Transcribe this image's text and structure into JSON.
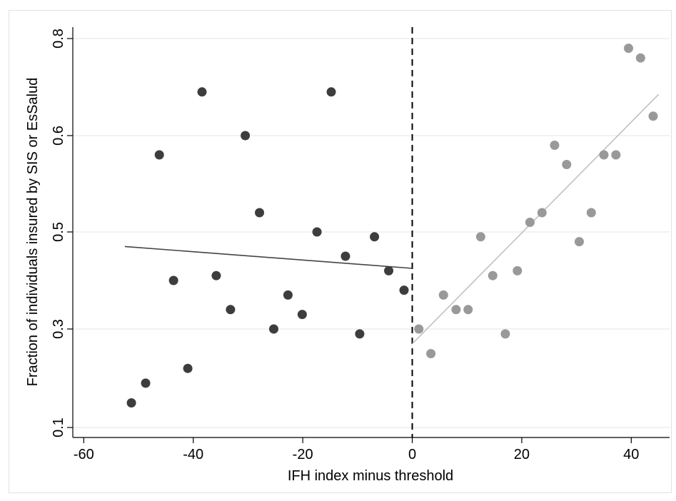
{
  "chart_data": {
    "type": "scatter",
    "xlabel": "IFH index minus threshold",
    "ylabel": "Fraction of individuals insured by SIS or EsSalud",
    "xlim": [
      -62,
      47
    ],
    "ylim": [
      0.1,
      0.8
    ],
    "x_ticks": [
      -60,
      -40,
      -20,
      0,
      20,
      40
    ],
    "x_tick_labels": [
      "-60",
      "-40",
      "-20",
      "0",
      "20",
      "40"
    ],
    "y_ticks": [
      0.1,
      0.3,
      0.5,
      0.6,
      0.8
    ],
    "y_tick_labels": [
      "0.1",
      "0.3",
      "0.5",
      "0.6",
      "0.8"
    ],
    "grid": "horizontal",
    "threshold_x": 0,
    "series": [
      {
        "color": "#3d3d3d",
        "x": [
          -51.3,
          -48.7,
          -46.2,
          -43.6,
          -41.0,
          -38.4,
          -35.8,
          -33.2,
          -30.5,
          -27.9,
          -25.3,
          -22.7,
          -20.1,
          -17.4,
          -14.8,
          -12.2,
          -9.6,
          -6.9,
          -4.3,
          -1.5
        ],
        "y": [
          0.15,
          0.19,
          0.58,
          0.4,
          0.22,
          0.69,
          0.41,
          0.34,
          0.6,
          0.52,
          0.3,
          0.37,
          0.33,
          0.5,
          0.69,
          0.45,
          0.29,
          0.49,
          0.42,
          0.38
        ],
        "fit": {
          "x": [
            -52.5,
            0
          ],
          "y": [
            0.47,
            0.425
          ]
        }
      },
      {
        "color": "#999999",
        "x": [
          1.2,
          3.4,
          5.7,
          8.0,
          10.2,
          12.5,
          14.7,
          17.0,
          19.2,
          21.5,
          23.7,
          26.0,
          28.2,
          30.5,
          32.7,
          35.0,
          37.2,
          39.5,
          41.7,
          44.0
        ],
        "y": [
          0.3,
          0.25,
          0.37,
          0.34,
          0.34,
          0.49,
          0.41,
          0.29,
          0.42,
          0.51,
          0.52,
          0.59,
          0.57,
          0.48,
          0.52,
          0.58,
          0.58,
          0.78,
          0.76,
          0.64
        ],
        "fit": {
          "x": [
            0,
            45
          ],
          "y": [
            0.27,
            0.685
          ]
        }
      }
    ]
  }
}
